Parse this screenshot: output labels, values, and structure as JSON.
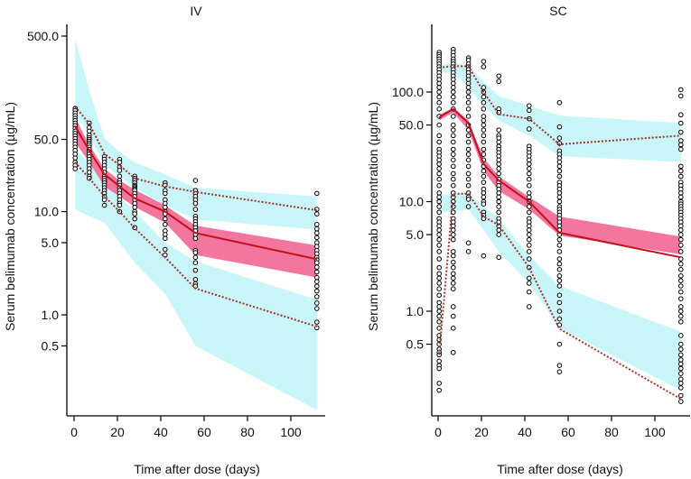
{
  "chart_data": [
    {
      "type": "scatter",
      "title": "IV",
      "xlabel": "Time after dose (days)",
      "ylabel": "Serum belimumab concentration (µg/mL)",
      "yscale": "log",
      "xlim": [
        0,
        115
      ],
      "ylim": [
        0.105,
        650
      ],
      "xticks": [
        "0",
        "20",
        "40",
        "60",
        "80",
        "100"
      ],
      "yticks": [
        "500.0",
        "50.0",
        "10.0",
        "5.0",
        "1.0",
        "0.5"
      ],
      "colors": {
        "pi_band": "#c8f6f9",
        "median_band": "#f2769e",
        "median_line": "#c1121c",
        "percentile_line": "#a8302e"
      },
      "times": [
        0.5,
        7,
        14,
        21,
        28,
        42,
        56,
        112
      ],
      "observed_median": [
        67,
        39,
        23,
        17.5,
        13.4,
        10.0,
        6.2,
        3.46
      ],
      "observed_p95": [
        104,
        71,
        36.4,
        28,
        21,
        17.5,
        15.5,
        10.3
      ],
      "observed_p5": [
        30,
        21,
        14.1,
        10,
        6.9,
        3.6,
        1.8,
        0.77
      ],
      "median_pi": {
        "low": [
          47,
          30,
          17.5,
          14,
          11.1,
          7.8,
          3.8,
          2.3
        ],
        "high": [
          82,
          44,
          26,
          20,
          16.3,
          11.5,
          7.3,
          4.7
        ]
      },
      "p95_pi": {
        "low": [
          90,
          55,
          28,
          22,
          17,
          11.5,
          8.4,
          6.7
        ],
        "high": [
          470,
          150,
          51,
          38,
          30,
          22.8,
          17,
          14
        ]
      },
      "p5_pi": {
        "low": [
          10.5,
          9,
          7.8,
          5,
          3.2,
          1.6,
          0.5,
          0.12
        ],
        "high": [
          40,
          30,
          20,
          14,
          10,
          5,
          3.3,
          1.4
        ]
      },
      "observations": [
        {
          "t": 0.5,
          "values": [
            100,
            95,
            90,
            85,
            80,
            76,
            72,
            68,
            64,
            60,
            57,
            54,
            51,
            48,
            45,
            42,
            39,
            36,
            33,
            30,
            28,
            26
          ]
        },
        {
          "t": 7,
          "values": [
            72,
            65,
            60,
            55,
            52,
            50,
            48,
            46,
            44,
            42,
            40,
            38,
            36,
            34,
            32,
            30,
            28,
            26,
            24,
            22,
            21
          ]
        },
        {
          "t": 14,
          "values": [
            34,
            32,
            30,
            28,
            26,
            24,
            22,
            21,
            20,
            19,
            18,
            17,
            16,
            15,
            14,
            13,
            11.5
          ]
        },
        {
          "t": 21,
          "values": [
            32,
            30,
            27,
            25,
            22,
            20,
            19,
            18,
            17,
            16,
            15,
            14,
            13,
            12,
            11.5,
            10
          ]
        },
        {
          "t": 28,
          "values": [
            22,
            21,
            20,
            19,
            18,
            17.5,
            17,
            16.5,
            16,
            15,
            14,
            13,
            12,
            11,
            10,
            9.5,
            8.5,
            7
          ]
        },
        {
          "t": 42,
          "values": [
            19,
            18,
            16,
            15,
            13,
            12,
            11,
            10,
            9.5,
            8.5,
            7.5,
            6.5,
            6,
            5.5,
            4.3,
            3.8
          ]
        },
        {
          "t": 56,
          "values": [
            20,
            16,
            15,
            14,
            13,
            12,
            10.5,
            9,
            8.5,
            8,
            7.5,
            7,
            6.5,
            6,
            5.5,
            4.2,
            4,
            3.6,
            3.2,
            2.7,
            2.2,
            2.0,
            1.9
          ]
        },
        {
          "t": 112,
          "values": [
            15,
            10.5,
            9.5,
            7.5,
            6.8,
            6.2,
            5.6,
            5.0,
            4.6,
            4.2,
            3.9,
            3.6,
            3.4,
            3.2,
            2.9,
            2.6,
            2.3,
            2.1,
            1.9,
            1.7,
            1.5,
            1.3,
            1.15,
            0.85,
            0.75
          ]
        }
      ]
    },
    {
      "type": "scatter",
      "title": "SC",
      "xlabel": "Time after dose (days)",
      "ylabel": "Serum belimumab concentration (µg/mL)",
      "yscale": "log",
      "xlim": [
        0,
        115
      ],
      "ylim": [
        0.13,
        360
      ],
      "xticks": [
        "0",
        "20",
        "40",
        "60",
        "80",
        "100"
      ],
      "yticks": [
        "100.0",
        "50.0",
        "10.0",
        "5.0",
        "1.0",
        "0.5"
      ],
      "colors": {
        "pi_band": "#c8f6f9",
        "median_band": "#f2769e",
        "median_line": "#c1121c",
        "percentile_line": "#a8302e"
      },
      "times": [
        0.5,
        7,
        14,
        21,
        28,
        42,
        56,
        112
      ],
      "observed_median": [
        58.8,
        70,
        52,
        22,
        15.6,
        10,
        5.2,
        3.1
      ],
      "observed_p95": [
        167,
        172,
        172,
        100,
        62.7,
        57,
        33.3,
        40
      ],
      "observed_p5": [
        0.4,
        11.8,
        11.8,
        7.3,
        6.1,
        2.5,
        0.69,
        0.158
      ],
      "median_pi": {
        "low": [
          55,
          65,
          45,
          19,
          12.5,
          8.5,
          4.9,
          3.3
        ],
        "high": [
          62,
          72,
          55,
          25,
          17,
          11,
          7.3,
          4.8
        ]
      },
      "p95_pi": {
        "low": [
          150,
          150,
          110,
          75,
          55,
          40,
          26,
          23
        ],
        "high": [
          175,
          185,
          173,
          125,
          91.5,
          75,
          61,
          52
        ]
      },
      "p5_pi": {
        "low": [
          8,
          8,
          8.5,
          5.5,
          3.5,
          1.8,
          0.7,
          0.19
        ],
        "high": [
          11.5,
          11.5,
          12,
          9,
          7,
          3.2,
          1.7,
          0.65
        ]
      },
      "observations": [
        {
          "t": 0.5,
          "values": [
            230,
            220,
            210,
            200,
            190,
            180,
            170,
            160,
            150,
            140,
            130,
            120,
            110,
            100,
            90,
            80,
            70,
            60,
            50,
            40,
            35,
            30,
            28,
            26,
            24,
            22,
            20,
            18,
            16,
            14,
            12,
            11,
            10,
            9,
            8,
            7,
            6.5,
            6,
            5.5,
            5,
            4.5,
            4,
            3.5,
            3,
            2.5,
            2.2,
            2,
            1.8,
            1.6,
            1.4,
            1.2,
            1.1,
            1,
            0.9,
            0.8,
            0.7,
            0.6,
            0.55,
            0.5,
            0.45,
            0.42,
            0.4,
            0.35,
            0.32,
            0.3,
            0.22,
            0.19
          ]
        },
        {
          "t": 7,
          "values": [
            245,
            230,
            215,
            200,
            190,
            180,
            170,
            160,
            150,
            140,
            130,
            120,
            110,
            100,
            90,
            80,
            70,
            60,
            50,
            45,
            40,
            35,
            30,
            27,
            24,
            21,
            18,
            16,
            14,
            12,
            11,
            10,
            9,
            8,
            7,
            6.5,
            6,
            5.5,
            5,
            4.5,
            3.5,
            3.2,
            2.8,
            2.5,
            2.2,
            2,
            1.8,
            1.6,
            1.1,
            0.9,
            0.7,
            0.42
          ]
        },
        {
          "t": 14,
          "values": [
            205,
            195,
            180,
            170,
            160,
            150,
            140,
            130,
            120,
            110,
            100,
            90,
            80,
            70,
            60,
            50,
            45,
            40,
            35,
            30,
            27,
            24,
            21,
            18,
            16,
            14,
            12,
            11,
            10.5,
            9,
            4.2,
            3.5
          ]
        },
        {
          "t": 21,
          "values": [
            190,
            170,
            110,
            100,
            90,
            80,
            70,
            60,
            55,
            50,
            45,
            40,
            35,
            30,
            27,
            24,
            21,
            19,
            17,
            15,
            13,
            12,
            11,
            10,
            9.5,
            8,
            7.5,
            7,
            3.2
          ]
        },
        {
          "t": 28,
          "values": [
            140,
            125,
            70,
            65,
            45,
            40,
            38,
            35,
            32,
            30,
            28,
            26,
            24,
            22,
            20,
            18,
            16,
            15,
            14,
            13,
            12,
            11,
            10,
            9,
            8,
            7,
            6.5,
            6,
            5.5,
            5,
            3.1
          ]
        },
        {
          "t": 42,
          "values": [
            75,
            68,
            57,
            46,
            32,
            30,
            28,
            26,
            24,
            22,
            20,
            18,
            16,
            14,
            12,
            11,
            10,
            9,
            8,
            7,
            6.5,
            6,
            5.5,
            5,
            4.5,
            4,
            3.5,
            3,
            2.5,
            2,
            1.8,
            1.5,
            1.1
          ]
        },
        {
          "t": 56,
          "values": [
            80,
            48,
            38,
            34,
            29,
            27,
            25,
            23,
            21,
            19,
            17,
            15,
            14,
            13,
            12,
            11,
            10,
            9,
            8.5,
            8,
            7.5,
            7,
            6.5,
            6,
            5.5,
            5,
            4.5,
            4,
            3.5,
            3,
            2.7,
            2.4,
            2.1,
            1.9,
            1.7,
            1.4,
            1.2,
            1.0,
            0.85,
            0.75,
            0.5,
            0.32,
            0.28
          ]
        },
        {
          "t": 112,
          "values": [
            105,
            92,
            62,
            52,
            43,
            36,
            33,
            30,
            21,
            19,
            17,
            15,
            14,
            13,
            12,
            11,
            10,
            9.5,
            9,
            8.5,
            8,
            7.5,
            7,
            6.5,
            6,
            5.5,
            5,
            4.5,
            4,
            3.5,
            3,
            2.7,
            2.4,
            2.1,
            1.9,
            1.7,
            1.5,
            1.3,
            1.1,
            1,
            0.9,
            0.8,
            0.6,
            0.5,
            0.45,
            0.4,
            0.36,
            0.33,
            0.3,
            0.27,
            0.24,
            0.22,
            0.2,
            0.17,
            0.15
          ]
        }
      ]
    }
  ]
}
